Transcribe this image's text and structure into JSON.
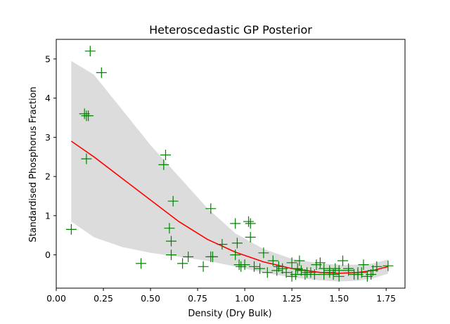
{
  "chart_data": {
    "type": "scatter",
    "title": "Heteroscedastic GP Posterior",
    "xlabel": "Density (Dry Bulk)",
    "ylabel": "Standardised Phosphorus Fraction",
    "xlim": [
      0.0,
      1.85
    ],
    "ylim": [
      -0.85,
      5.5
    ],
    "xticks": [
      {
        "value": 0.0,
        "label": "0.00"
      },
      {
        "value": 0.25,
        "label": "0.25"
      },
      {
        "value": 0.5,
        "label": "0.50"
      },
      {
        "value": 0.75,
        "label": "0.75"
      },
      {
        "value": 1.0,
        "label": "1.00"
      },
      {
        "value": 1.25,
        "label": "1.25"
      },
      {
        "value": 1.5,
        "label": "1.50"
      },
      {
        "value": 1.75,
        "label": "1.75"
      }
    ],
    "yticks": [
      {
        "value": 0,
        "label": "0"
      },
      {
        "value": 1,
        "label": "1"
      },
      {
        "value": 2,
        "label": "2"
      },
      {
        "value": 3,
        "label": "3"
      },
      {
        "value": 4,
        "label": "4"
      },
      {
        "value": 5,
        "label": "5"
      }
    ],
    "grid": false,
    "series": [
      {
        "name": "posterior mean",
        "kind": "line",
        "color": "#ff0000",
        "x": [
          0.08,
          0.2,
          0.35,
          0.5,
          0.65,
          0.8,
          0.95,
          1.1,
          1.25,
          1.4,
          1.5,
          1.6,
          1.68,
          1.76
        ],
        "y": [
          2.9,
          2.5,
          1.95,
          1.4,
          0.85,
          0.4,
          0.07,
          -0.18,
          -0.35,
          -0.45,
          -0.47,
          -0.45,
          -0.4,
          -0.3
        ]
      },
      {
        "name": "posterior band upper",
        "kind": "band",
        "color": "#dcdcdc",
        "x": [
          0.08,
          0.2,
          0.35,
          0.5,
          0.65,
          0.8,
          0.95,
          1.1,
          1.25,
          1.4,
          1.5,
          1.6,
          1.68,
          1.76
        ],
        "y_upper": [
          4.95,
          4.6,
          3.7,
          2.8,
          2.0,
          1.2,
          0.55,
          0.15,
          -0.1,
          -0.22,
          -0.25,
          -0.25,
          -0.22,
          -0.12
        ],
        "y_lower": [
          0.85,
          0.45,
          0.2,
          0.05,
          -0.05,
          -0.15,
          -0.3,
          -0.45,
          -0.58,
          -0.65,
          -0.68,
          -0.66,
          -0.6,
          -0.48
        ]
      },
      {
        "name": "observations",
        "kind": "scatter",
        "marker": "+",
        "color": "#008000",
        "x": [
          0.08,
          0.15,
          0.16,
          0.16,
          0.17,
          0.18,
          0.24,
          0.45,
          0.57,
          0.58,
          0.6,
          0.61,
          0.61,
          0.62,
          0.67,
          0.7,
          0.78,
          0.82,
          0.82,
          0.83,
          0.88,
          0.95,
          0.95,
          0.96,
          0.97,
          0.98,
          1.0,
          1.02,
          1.03,
          1.03,
          1.05,
          1.08,
          1.1,
          1.12,
          1.15,
          1.17,
          1.2,
          1.22,
          1.25,
          1.27,
          1.28,
          1.3,
          1.32,
          1.35,
          1.38,
          1.4,
          1.42,
          1.45,
          1.48,
          1.5,
          1.52,
          1.55,
          1.58,
          1.6,
          1.63,
          1.65,
          1.68,
          1.7,
          1.76,
          1.29,
          1.33,
          1.42,
          1.47,
          1.55,
          1.62,
          1.25,
          1.37,
          1.5,
          1.6,
          1.18,
          1.45,
          1.67
        ],
        "y": [
          0.65,
          3.6,
          3.55,
          2.45,
          3.55,
          5.2,
          4.65,
          -0.22,
          2.3,
          2.55,
          0.68,
          0.35,
          0.0,
          1.37,
          -0.22,
          -0.05,
          -0.3,
          1.18,
          -0.05,
          -0.05,
          0.27,
          0.8,
          0.0,
          0.3,
          -0.25,
          -0.3,
          -0.25,
          0.85,
          0.45,
          0.8,
          -0.3,
          -0.35,
          0.05,
          -0.45,
          -0.15,
          -0.4,
          -0.35,
          -0.45,
          -0.2,
          -0.5,
          -0.35,
          -0.4,
          -0.5,
          -0.45,
          -0.25,
          -0.2,
          -0.5,
          -0.4,
          -0.35,
          -0.55,
          -0.15,
          -0.4,
          -0.5,
          -0.45,
          -0.25,
          -0.55,
          -0.4,
          -0.3,
          -0.28,
          -0.15,
          -0.45,
          -0.35,
          -0.5,
          -0.35,
          -0.45,
          -0.55,
          -0.5,
          -0.4,
          -0.5,
          -0.3,
          -0.45,
          -0.5
        ]
      }
    ]
  },
  "colors": {
    "background": "#ffffff",
    "band": "#dcdcdc",
    "mean_line": "#ff0000",
    "points": "#008000",
    "axes": "#000000"
  }
}
